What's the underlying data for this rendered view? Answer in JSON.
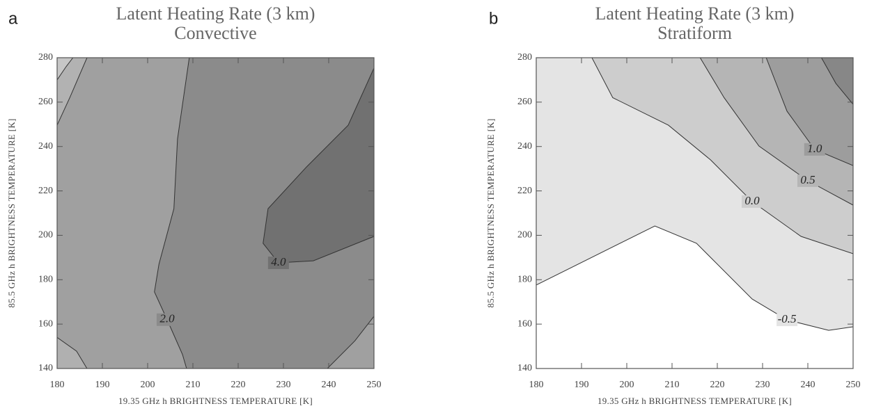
{
  "chart_data": [
    {
      "type": "contour",
      "label": "a",
      "title": "Latent Heating Rate (3 km)",
      "subtitle": "Convective",
      "xlabel": "19.35 GHz h BRIGHTNESS TEMPERATURE [K]",
      "ylabel": "85.5 GHz h BRIGHTNESS TEMPERATURE [K]",
      "xlim": [
        180,
        250
      ],
      "ylim": [
        140,
        280
      ],
      "xticks": [
        180,
        190,
        200,
        210,
        220,
        230,
        240,
        250
      ],
      "yticks": [
        140,
        160,
        180,
        200,
        220,
        240,
        260,
        280
      ],
      "background": "#a0a0a0",
      "fills": [
        {
          "color": "#8b8b8b",
          "x": [
            209.2,
            206.6,
            205.8,
            202.5,
            201.5,
            204.3,
            207.7,
            208.6,
            250,
            250
          ],
          "y": [
            280,
            243.4,
            212,
            187,
            174.5,
            162,
            146.3,
            140,
            140,
            280
          ]
        },
        {
          "color": "#717171",
          "x": [
            250,
            244.3,
            235.1,
            226.6,
            225.5,
            228.9,
            236.6,
            250
          ],
          "y": [
            275.3,
            249.6,
            230.8,
            212,
            196.4,
            187.6,
            188.5,
            199.5
          ]
        },
        {
          "color": "#b2b2b2",
          "x": [
            180,
            182.8,
            186.6,
            180
          ],
          "y": [
            249.6,
            262,
            280,
            280
          ]
        },
        {
          "color": "#c6c6c6",
          "x": [
            180,
            182,
            183.5,
            180
          ],
          "y": [
            270,
            276,
            280,
            280
          ]
        },
        {
          "color": "#b0b0b0",
          "x": [
            180,
            184.3,
            186.6,
            180
          ],
          "y": [
            154,
            147.8,
            140,
            140
          ]
        },
        {
          "color": "#a0a0a0",
          "x": [
            239.7,
            245.8,
            250,
            250
          ],
          "y": [
            140,
            152.5,
            163.5,
            140
          ]
        }
      ],
      "contours": [
        {
          "label": "2.0",
          "x": [
            209.2,
            206.6,
            205.8,
            202.5,
            201.5,
            204.3,
            207.7,
            208.6
          ],
          "y": [
            280,
            243.4,
            212,
            187,
            174.5,
            162,
            146.3,
            140
          ]
        },
        {
          "label": "4.0",
          "x": [
            250,
            244.3,
            235.1,
            226.6,
            225.5,
            228.9,
            236.6,
            250
          ],
          "y": [
            275.3,
            249.6,
            230.8,
            212,
            196.4,
            187.6,
            188.5,
            199.5
          ]
        },
        {
          "x": [
            180,
            182.8,
            186.6
          ],
          "y": [
            249.6,
            262,
            280
          ]
        },
        {
          "x": [
            180,
            182,
            183.5
          ],
          "y": [
            270,
            276,
            280
          ]
        },
        {
          "x": [
            180,
            184.3,
            186.6
          ],
          "y": [
            154,
            147.8,
            140
          ]
        },
        {
          "x": [
            239.7,
            245.8,
            250
          ],
          "y": [
            140,
            152.5,
            163.5
          ]
        }
      ]
    },
    {
      "type": "contour",
      "label": "b",
      "title": "Latent Heating Rate (3 km)",
      "subtitle": "Stratiform",
      "xlabel": "19.35 GHz h BRIGHTNESS TEMPERATURE [K]",
      "ylabel": "85.5 GHz h BRIGHTNESS TEMPERATURE [K]",
      "xlim": [
        180,
        250
      ],
      "ylim": [
        140,
        280
      ],
      "xticks": [
        180,
        190,
        200,
        210,
        220,
        230,
        240,
        250
      ],
      "yticks": [
        140,
        160,
        180,
        200,
        220,
        240,
        260,
        280
      ],
      "background": "#ffffff",
      "fills": [
        {
          "color": "#e4e4e4",
          "x": [
            180,
            206.2,
            215.4,
            227.7,
            235.4,
            244.6,
            250,
            250,
            180
          ],
          "y": [
            177.6,
            204.2,
            196.4,
            171.3,
            161.9,
            157.2,
            158.8,
            280,
            280
          ]
        },
        {
          "color": "#cdcdcd",
          "x": [
            192.3,
            196.9,
            209.2,
            218.5,
            227.7,
            238.5,
            250,
            250
          ],
          "y": [
            280,
            262,
            249.6,
            234,
            215.2,
            199.5,
            191.7,
            280
          ]
        },
        {
          "color": "#b5b5b5",
          "x": [
            216.2,
            221.5,
            229.2,
            240,
            250,
            250
          ],
          "y": [
            280,
            262,
            240.2,
            224.6,
            213.6,
            280
          ]
        },
        {
          "color": "#9d9d9d",
          "x": [
            230.8,
            235.4,
            241.5,
            250,
            250
          ],
          "y": [
            280,
            255.9,
            238.7,
            231.4,
            280
          ]
        },
        {
          "color": "#878787",
          "x": [
            243,
            246.2,
            250,
            250
          ],
          "y": [
            280,
            268.4,
            259,
            280
          ]
        }
      ],
      "contours": [
        {
          "label": "-0.5",
          "x": [
            180,
            206.2,
            215.4,
            227.7,
            235.4,
            244.6,
            250
          ],
          "y": [
            177.6,
            204.2,
            196.4,
            171.3,
            161.9,
            157.2,
            158.8
          ]
        },
        {
          "label": "0.0",
          "x": [
            192.3,
            196.9,
            209.2,
            218.5,
            227.7,
            238.5,
            250
          ],
          "y": [
            280,
            262,
            249.6,
            234,
            215.2,
            199.5,
            191.7
          ]
        },
        {
          "label": "0.5",
          "x": [
            216.2,
            221.5,
            229.2,
            240,
            250
          ],
          "y": [
            280,
            262,
            240.2,
            224.6,
            213.6
          ]
        },
        {
          "label": "1.0",
          "x": [
            230.8,
            235.4,
            241.5,
            250
          ],
          "y": [
            280,
            255.9,
            238.7,
            231.4
          ]
        },
        {
          "x": [
            243,
            246.2,
            250
          ],
          "y": [
            280,
            268.4,
            259
          ]
        }
      ]
    }
  ]
}
